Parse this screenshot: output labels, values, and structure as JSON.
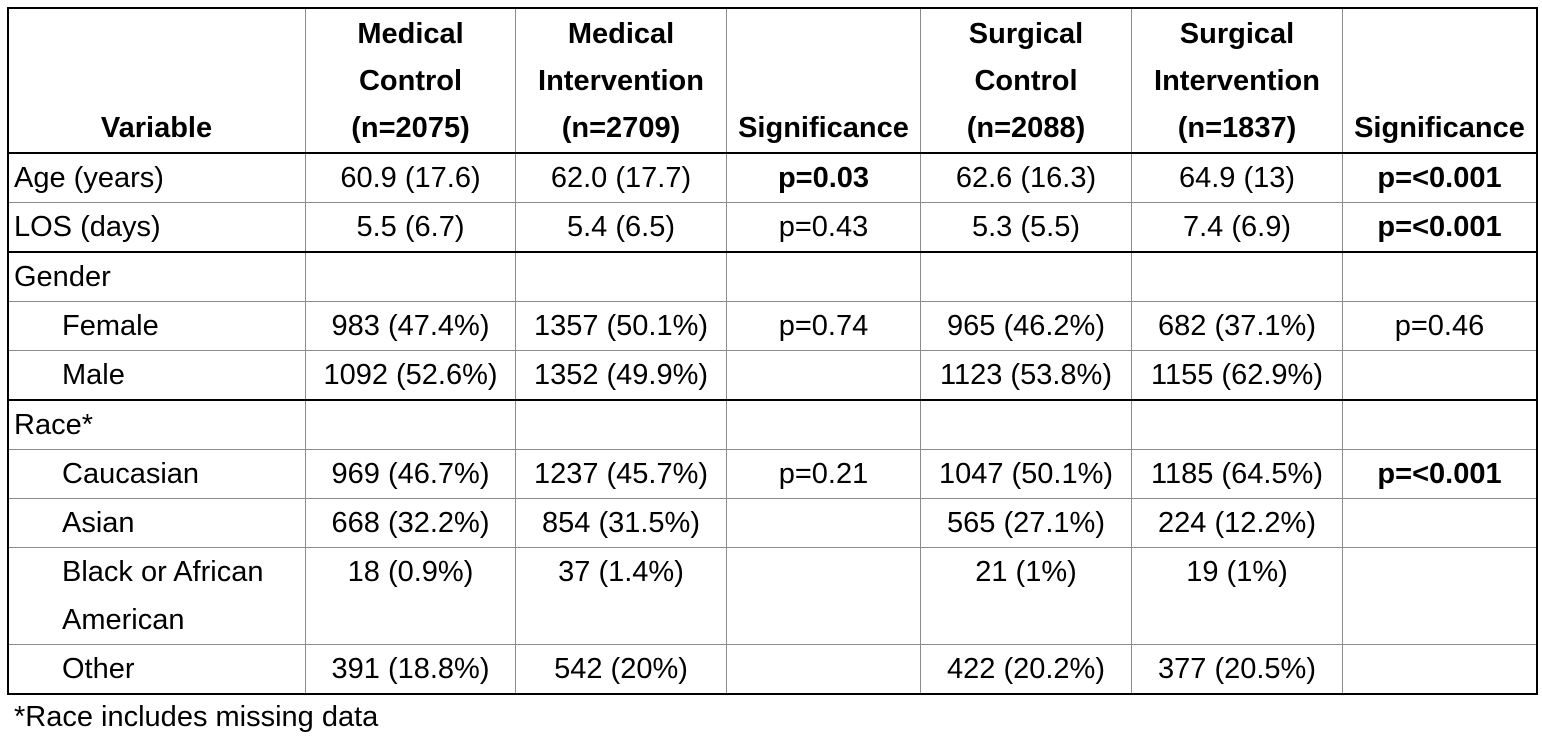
{
  "header": {
    "variable": "Variable",
    "med_control": [
      "Medical",
      "Control",
      "(n=2075)"
    ],
    "med_intervention": [
      "Medical",
      "Intervention",
      "(n=2709)"
    ],
    "significance1": "Significance",
    "surg_control": [
      "Surgical",
      "Control",
      "(n=2088)"
    ],
    "surg_intervention": [
      "Surgical",
      "Intervention",
      "(n=1837)"
    ],
    "significance2": "Significance"
  },
  "rows": {
    "age": {
      "label": "Age (years)",
      "mc": "60.9 (17.6)",
      "mi": "62.0 (17.7)",
      "sig1": "p=0.03",
      "sc": "62.6 (16.3)",
      "si": "64.9 (13)",
      "sig2": "p=<0.001"
    },
    "los": {
      "label": "LOS (days)",
      "mc": "5.5 (6.7)",
      "mi": "5.4 (6.5)",
      "sig1": "p=0.43",
      "sc": "5.3 (5.5)",
      "si": "7.4 (6.9)",
      "sig2": "p=<0.001"
    },
    "gender": {
      "label": "Gender"
    },
    "female": {
      "label": "Female",
      "mc": "983 (47.4%)",
      "mi": "1357 (50.1%)",
      "sig1": "p=0.74",
      "sc": "965 (46.2%)",
      "si": "682 (37.1%)",
      "sig2": "p=0.46"
    },
    "male": {
      "label": "Male",
      "mc": "1092 (52.6%)",
      "mi": "1352 (49.9%)",
      "sc": "1123 (53.8%)",
      "si": "1155 (62.9%)"
    },
    "race": {
      "label": "Race*"
    },
    "caucasian": {
      "label": "Caucasian",
      "mc": "969 (46.7%)",
      "mi": "1237 (45.7%)",
      "sig1": "p=0.21",
      "sc": "1047 (50.1%)",
      "si": "1185 (64.5%)",
      "sig2": "p=<0.001"
    },
    "asian": {
      "label": "Asian",
      "mc": "668 (32.2%)",
      "mi": "854 (31.5%)",
      "sc": "565 (27.1%)",
      "si": "224 (12.2%)"
    },
    "black": {
      "label": "Black or African American",
      "mc": "18 (0.9%)",
      "mi": "37 (1.4%)",
      "sc": "21 (1%)",
      "si": "19 (1%)"
    },
    "other": {
      "label": "Other",
      "mc": "391 (18.8%)",
      "mi": "542 (20%)",
      "sc": "422 (20.2%)",
      "si": "377 (20.5%)"
    }
  },
  "footnote": "*Race includes missing data"
}
